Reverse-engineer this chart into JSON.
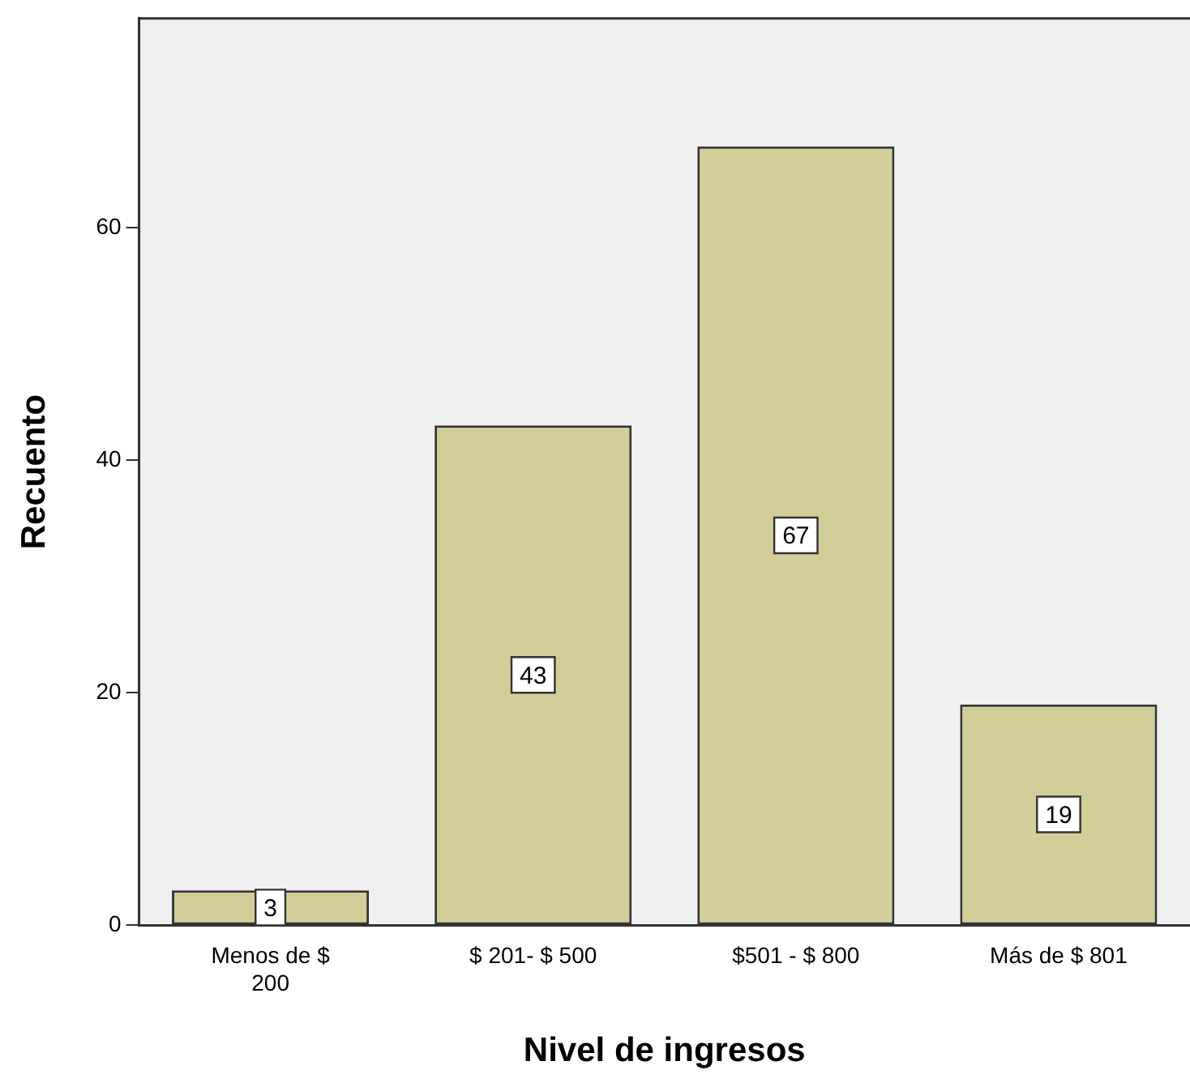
{
  "chart_data": {
    "type": "bar",
    "xlabel": "Nivel de ingresos",
    "ylabel": "Recuento",
    "categories": [
      "Menos de $ 200",
      "$ 201- $ 500",
      "$501 - $ 800",
      "Más de $ 801"
    ],
    "values": [
      3,
      43,
      67,
      19
    ],
    "color": "#d3ce97",
    "ylim": [
      0,
      78
    ],
    "yticks": [
      0,
      20,
      40,
      60
    ],
    "grid": false,
    "legend": false,
    "data_labels": true
  }
}
